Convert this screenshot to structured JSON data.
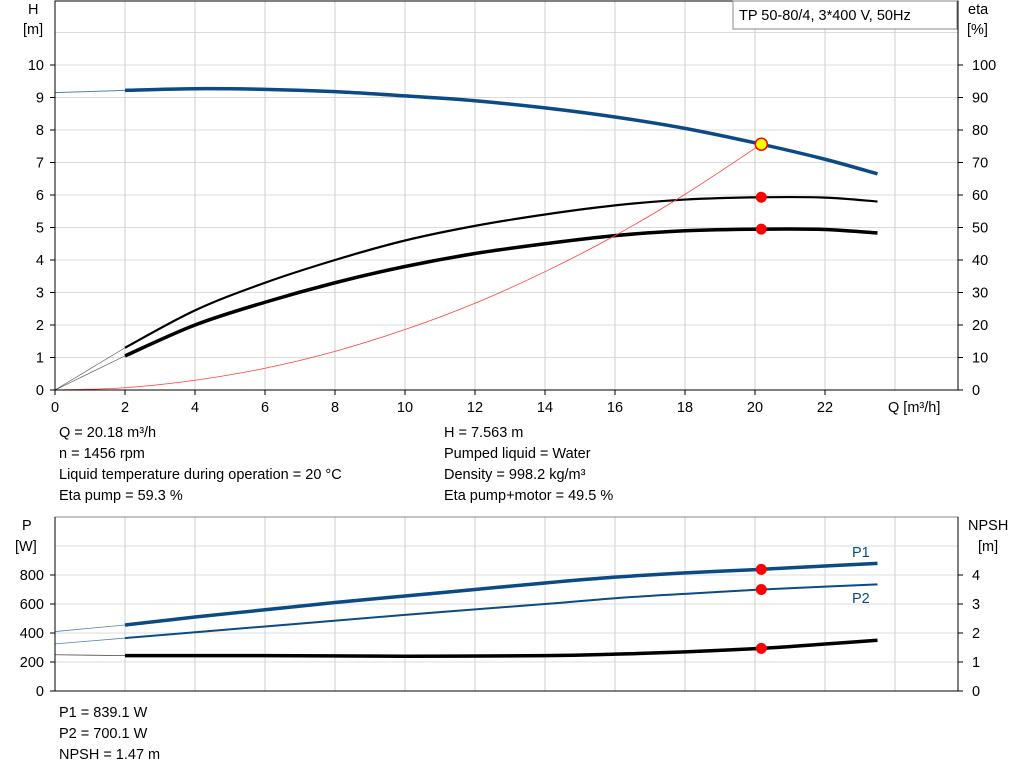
{
  "chart_data": [
    {
      "type": "line",
      "title": "TP 50-80/4, 3*400 V, 50Hz",
      "xlabel": "Q [m³/h]",
      "ylabel_left": [
        "H",
        "[m]"
      ],
      "ylabel_right": [
        "eta",
        "[%]"
      ],
      "xlim": [
        0,
        24
      ],
      "ylim_left": [
        0,
        10
      ],
      "ylim_right": [
        0,
        100
      ],
      "x_ticks": [
        "0",
        "2",
        "4",
        "6",
        "8",
        "10",
        "12",
        "14",
        "16",
        "18",
        "20",
        "22"
      ],
      "y_ticks_left": [
        "0",
        "1",
        "2",
        "3",
        "4",
        "5",
        "6",
        "7",
        "8",
        "9",
        "10"
      ],
      "y_ticks_right": [
        "0",
        "10",
        "20",
        "30",
        "40",
        "50",
        "60",
        "70",
        "80",
        "90",
        "100"
      ],
      "grid": true,
      "colors": {
        "head": "#0c4a86",
        "eta": "#000000",
        "system": "#ff4040",
        "marker": "#ff0000",
        "duty_marker": "#ffff00"
      },
      "series": [
        {
          "axis": "left",
          "x": [
            0,
            2,
            4,
            6,
            8,
            10,
            12,
            14,
            16,
            18,
            20.18,
            22,
            23.5
          ],
          "y": [
            9.15,
            9.22,
            9.27,
            9.25,
            9.18,
            9.05,
            8.9,
            8.68,
            8.4,
            8.05,
            7.563,
            7.1,
            6.65
          ]
        },
        {
          "axis": "right",
          "x": [
            0,
            2,
            4,
            6,
            8,
            10,
            12,
            14,
            16,
            18,
            20.18,
            22,
            23.5
          ],
          "y": [
            0,
            13,
            24.5,
            33,
            40,
            46,
            50.5,
            54,
            56.8,
            58.6,
            59.3,
            59.2,
            58
          ]
        },
        {
          "axis": "right",
          "x": [
            0,
            2,
            4,
            6,
            8,
            10,
            12,
            14,
            16,
            18,
            20.18,
            22,
            23.5
          ],
          "y": [
            0,
            10.5,
            20,
            27,
            33,
            38,
            42,
            45,
            47.5,
            49,
            49.5,
            49.4,
            48.3
          ]
        },
        {
          "axis": "left",
          "x": [
            0,
            2,
            4,
            6,
            8,
            10,
            12,
            14,
            16,
            18,
            20.18
          ],
          "y": [
            0,
            0.07,
            0.3,
            0.67,
            1.19,
            1.86,
            2.67,
            3.64,
            4.75,
            6.02,
            7.563
          ]
        }
      ],
      "duty_point": {
        "Q": 20.18,
        "H": 7.563,
        "eta_pump": 59.3,
        "eta_pump_motor": 49.5
      }
    },
    {
      "type": "line",
      "ylabel_left": [
        "P",
        "[W]"
      ],
      "ylabel_right": [
        "NPSH",
        "[m]"
      ],
      "xlim": [
        0,
        24
      ],
      "ylim_left": [
        0,
        1000
      ],
      "ylim_right": [
        0,
        5
      ],
      "y_ticks_left": [
        "0",
        "200",
        "400",
        "600",
        "800"
      ],
      "y_ticks_right": [
        "0",
        "1",
        "2",
        "3",
        "4"
      ],
      "grid": true,
      "series": [
        {
          "name": "P1",
          "axis": "left",
          "x": [
            0,
            2,
            4,
            6,
            8,
            10,
            12,
            14,
            16,
            18,
            20.18,
            22,
            23.5
          ],
          "y": [
            410,
            455,
            510,
            560,
            610,
            655,
            700,
            745,
            785,
            815,
            839.1,
            862,
            880
          ]
        },
        {
          "name": "P2",
          "axis": "left",
          "x": [
            0,
            2,
            6,
            10,
            14,
            16,
            18,
            20.18,
            22,
            23.5
          ],
          "y": [
            325,
            365,
            445,
            525,
            600,
            640,
            670,
            700.1,
            720,
            735
          ]
        },
        {
          "axis": "right",
          "x": [
            0,
            2,
            6,
            10,
            14,
            16,
            18,
            20.18,
            22,
            23.5
          ],
          "y": [
            1.25,
            1.22,
            1.22,
            1.2,
            1.22,
            1.27,
            1.35,
            1.47,
            1.62,
            1.75
          ]
        }
      ]
    }
  ],
  "info_top_left": [
    "Q = 20.18 m³/h",
    "n = 1456 rpm",
    "Liquid temperature during operation = 20 °C",
    "Eta pump = 59.3 %"
  ],
  "info_top_right": [
    "H = 7.563 m",
    "Pumped liquid = Water",
    "Density = 998.2 kg/m³",
    "Eta pump+motor = 49.5 %"
  ],
  "info_bottom": [
    "P1 = 839.1 W",
    "P2 = 700.1 W",
    "NPSH = 1.47 m"
  ]
}
